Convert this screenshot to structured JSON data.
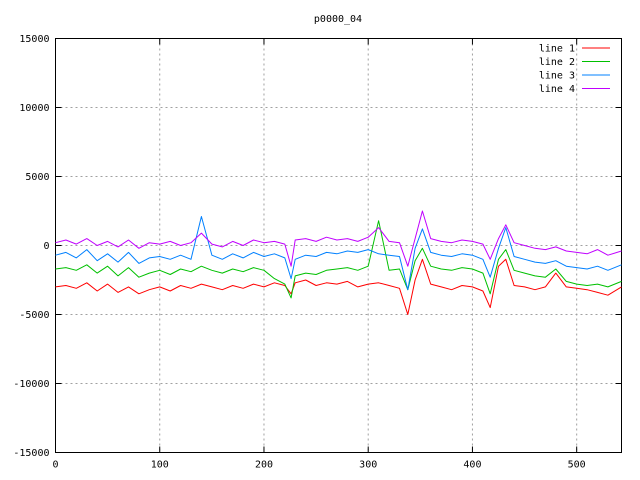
{
  "chart_data": {
    "type": "line",
    "title": "p0000_04",
    "xlabel": "",
    "ylabel": "",
    "xlim": [
      0,
      543
    ],
    "ylim": [
      -15000,
      15000
    ],
    "grid": true,
    "legend_position": "top-right",
    "x_ticks": [
      "0",
      "100",
      "200",
      "300",
      "400",
      "500"
    ],
    "y_ticks": [
      "15000",
      "10000",
      "5000",
      "0",
      "-5000",
      "-10000",
      "-15000"
    ],
    "x_tick_values": [
      0,
      100,
      200,
      300,
      400,
      500
    ],
    "y_tick_values": [
      15000,
      10000,
      5000,
      0,
      -5000,
      -10000,
      -15000
    ],
    "x": [
      0,
      10,
      20,
      30,
      40,
      50,
      60,
      70,
      80,
      90,
      100,
      110,
      120,
      130,
      140,
      150,
      160,
      170,
      180,
      190,
      200,
      210,
      220,
      226,
      230,
      240,
      250,
      260,
      270,
      280,
      290,
      300,
      310,
      320,
      330,
      338,
      345,
      352,
      360,
      370,
      380,
      390,
      400,
      410,
      417,
      425,
      432,
      440,
      450,
      460,
      470,
      480,
      490,
      500,
      510,
      520,
      530,
      543
    ],
    "series": [
      {
        "name": "line 1",
        "color": "#ff0000",
        "values": [
          -3000,
          -2900,
          -3100,
          -2700,
          -3300,
          -2800,
          -3400,
          -3000,
          -3500,
          -3200,
          -3000,
          -3300,
          -2900,
          -3100,
          -2800,
          -3000,
          -3200,
          -2900,
          -3100,
          -2800,
          -3000,
          -2700,
          -2900,
          -3500,
          -2700,
          -2500,
          -2900,
          -2700,
          -2800,
          -2600,
          -3000,
          -2800,
          -2700,
          -2900,
          -3100,
          -5000,
          -2500,
          -1000,
          -2800,
          -3000,
          -3200,
          -2900,
          -3000,
          -3300,
          -4500,
          -1500,
          -1000,
          -2900,
          -3000,
          -3200,
          -3000,
          -2000,
          -3000,
          -3100,
          -3200,
          -3400,
          -3600,
          -3000
        ]
      },
      {
        "name": "line 2",
        "color": "#00c000",
        "values": [
          -1700,
          -1600,
          -1800,
          -1400,
          -2000,
          -1500,
          -2200,
          -1600,
          -2300,
          -2000,
          -1800,
          -2100,
          -1700,
          -1900,
          -1500,
          -1800,
          -2000,
          -1700,
          -1900,
          -1600,
          -1800,
          -2400,
          -2800,
          -3800,
          -2200,
          -2000,
          -2100,
          -1800,
          -1700,
          -1600,
          -1800,
          -1500,
          1800,
          -1800,
          -1700,
          -3200,
          -1100,
          -200,
          -1500,
          -1700,
          -1800,
          -1600,
          -1700,
          -2000,
          -3500,
          -1000,
          -300,
          -1800,
          -2000,
          -2200,
          -2300,
          -1700,
          -2600,
          -2800,
          -2900,
          -2800,
          -3000,
          -2600
        ]
      },
      {
        "name": "line 3",
        "color": "#0080ff",
        "values": [
          -700,
          -500,
          -900,
          -300,
          -1100,
          -600,
          -1200,
          -500,
          -1300,
          -900,
          -800,
          -1000,
          -700,
          -1000,
          2100,
          -700,
          -1000,
          -600,
          -900,
          -500,
          -800,
          -600,
          -900,
          -2400,
          -1000,
          -700,
          -800,
          -500,
          -600,
          -400,
          -500,
          -300,
          -600,
          -700,
          -800,
          -3200,
          -200,
          1200,
          -500,
          -700,
          -800,
          -600,
          -700,
          -1000,
          -2300,
          -200,
          1300,
          -800,
          -1000,
          -1200,
          -1300,
          -1100,
          -1500,
          -1600,
          -1700,
          -1500,
          -1800,
          -1400
        ]
      },
      {
        "name": "line 4",
        "color": "#c000ff",
        "values": [
          200,
          400,
          100,
          500,
          0,
          300,
          -100,
          400,
          -200,
          200,
          100,
          300,
          0,
          200,
          900,
          100,
          -100,
          300,
          0,
          400,
          200,
          300,
          100,
          -1500,
          400,
          500,
          300,
          600,
          400,
          500,
          300,
          600,
          1300,
          300,
          200,
          -1500,
          500,
          2500,
          500,
          300,
          200,
          400,
          300,
          100,
          -1000,
          500,
          1500,
          200,
          0,
          -200,
          -300,
          -100,
          -400,
          -500,
          -600,
          -300,
          -700,
          -400
        ]
      }
    ]
  }
}
